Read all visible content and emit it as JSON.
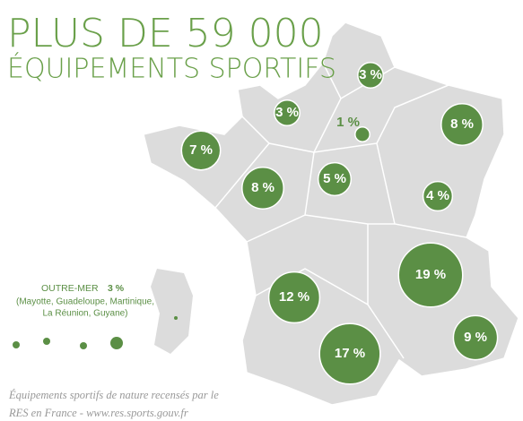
{
  "header": {
    "title": "PLUS DE 59 000",
    "subtitle": "ÉQUIPEMENTS SPORTIFS"
  },
  "bubbles": {
    "values": [
      3,
      3,
      1,
      8,
      7,
      8,
      5,
      4,
      19,
      12,
      17,
      9
    ],
    "value_labels": [
      "3 %",
      "3 %",
      "1 %",
      "8 %",
      "7 %",
      "8 %",
      "5 %",
      "4 %",
      "19 %",
      "12 %",
      "17 %",
      "9 %"
    ],
    "color": "#5b8f45"
  },
  "overseas": {
    "label": "OUTRE-MER",
    "value": 3,
    "value_label": "3 %",
    "details": [
      "(Mayotte, Guadeloupe, Martinique,",
      "La Réunion, Guyane)"
    ]
  },
  "footer": [
    "Équipements sportifs de nature recensés par le",
    "RES en France - www.res.sports.gouv.fr"
  ]
}
